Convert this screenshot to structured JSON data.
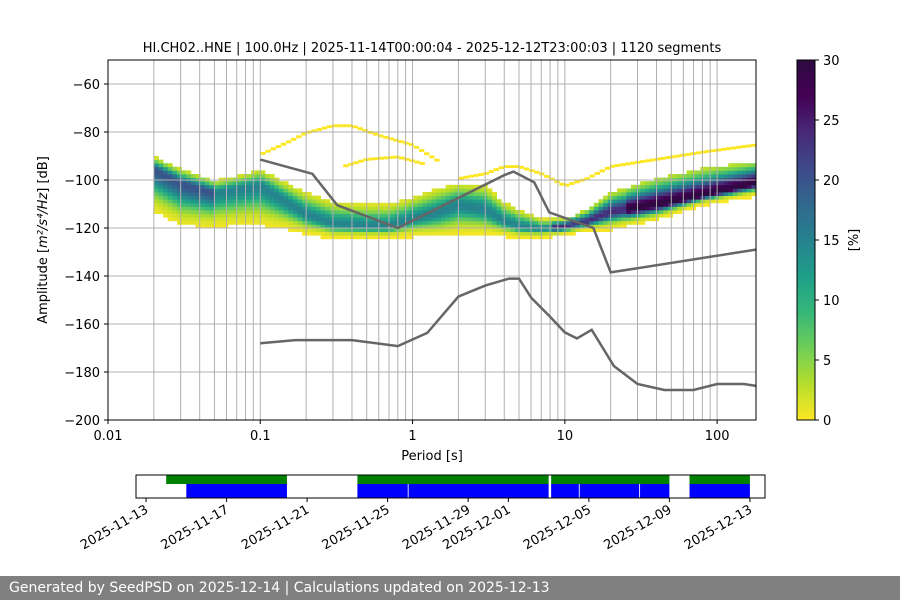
{
  "chart_data": {
    "type": "heatmap",
    "title": "HI.CH02..HNE | 100.0Hz | 2025-11-14T00:00:04 - 2025-12-12T23:00:03 | 1120 segments",
    "xlabel": "Period [s]",
    "ylabel_prefix": "Amplitude [",
    "ylabel_units": "m²/s⁴/Hz",
    "ylabel_suffix": "] [dB]",
    "xscale": "log",
    "xlim": [
      0.01,
      180
    ],
    "ylim": [
      -200,
      -50
    ],
    "x_ticks": [
      {
        "v": 0.01,
        "label": "0.01"
      },
      {
        "v": 0.1,
        "label": "0.1"
      },
      {
        "v": 1,
        "label": "1"
      },
      {
        "v": 10,
        "label": "10"
      },
      {
        "v": 100,
        "label": "100"
      }
    ],
    "y_ticks": [
      {
        "v": -60,
        "label": "−60"
      },
      {
        "v": -80,
        "label": "−80"
      },
      {
        "v": -100,
        "label": "−100"
      },
      {
        "v": -120,
        "label": "−120"
      },
      {
        "v": -140,
        "label": "−140"
      },
      {
        "v": -160,
        "label": "−160"
      },
      {
        "v": -180,
        "label": "−180"
      },
      {
        "v": -200,
        "label": "−200"
      }
    ],
    "grid": true,
    "period_range": [
      0.02,
      180
    ],
    "mode_curve": {
      "x": [
        0.02,
        0.03,
        0.05,
        0.08,
        0.1,
        0.15,
        0.2,
        0.3,
        0.5,
        0.7,
        1,
        1.5,
        2,
        3,
        4,
        5,
        7,
        10,
        14,
        20,
        40,
        80,
        180
      ],
      "y": [
        -96,
        -102,
        -106,
        -104,
        -103,
        -110,
        -115,
        -119,
        -120,
        -120,
        -117,
        -114,
        -111,
        -113,
        -118,
        -120,
        -121,
        -120,
        -118,
        -114,
        -111,
        -107,
        -102
      ]
    },
    "band_upper": {
      "x": [
        0.02,
        0.03,
        0.05,
        0.08,
        0.1,
        0.15,
        0.2,
        0.3,
        0.5,
        0.7,
        1,
        1.5,
        2,
        3,
        4,
        5,
        7,
        10,
        14,
        20,
        40,
        80,
        180
      ],
      "y": [
        -91,
        -96,
        -101,
        -98,
        -96,
        -102,
        -106,
        -110,
        -111,
        -111,
        -108,
        -104,
        -102,
        -103,
        -110,
        -113,
        -117,
        -117,
        -113,
        -106,
        -100,
        -96,
        -93
      ]
    },
    "band_lower": {
      "x": [
        0.02,
        0.03,
        0.05,
        0.08,
        0.1,
        0.15,
        0.2,
        0.3,
        0.5,
        0.7,
        1,
        1.5,
        2,
        3,
        4,
        5,
        7,
        10,
        14,
        20,
        40,
        80,
        180
      ],
      "y": [
        -112,
        -118,
        -119,
        -118,
        -118,
        -120,
        -122,
        -124,
        -124,
        -124,
        -123,
        -123,
        -122,
        -122,
        -123,
        -124,
        -124,
        -122,
        -121,
        -120,
        -116,
        -110,
        -106
      ]
    },
    "scatter_arcs": [
      {
        "x": [
          0.1,
          0.15,
          0.2,
          0.3,
          0.4,
          0.6,
          1,
          1.5
        ],
        "y": [
          -90,
          -85,
          -81,
          -78,
          -78,
          -82,
          -86,
          -93
        ]
      },
      {
        "x": [
          0.35,
          0.5,
          0.8,
          1.2
        ],
        "y": [
          -95,
          -92,
          -91,
          -94
        ]
      },
      {
        "x": [
          2,
          3,
          4,
          5,
          7,
          10,
          14,
          20,
          40,
          80,
          180
        ],
        "y": [
          -100,
          -98,
          -95,
          -95,
          -98,
          -103,
          -100,
          -95,
          -92,
          -89,
          -86
        ]
      }
    ],
    "nlnm": {
      "x": [
        0.1,
        0.17,
        0.3,
        0.4,
        0.8,
        1.25,
        2,
        3,
        4.3,
        5,
        6,
        8,
        10,
        12,
        15,
        21,
        30,
        45,
        70,
        100,
        150,
        180
      ],
      "y": [
        -168,
        -166.7,
        -166.7,
        -166.7,
        -169.2,
        -163.7,
        -148.6,
        -144,
        -141.1,
        -141.1,
        -149,
        -157,
        -163.5,
        -166,
        -162.4,
        -177.5,
        -185,
        -187.5,
        -187.5,
        -185,
        -185,
        -185.8
      ]
    },
    "nhnm": {
      "x": [
        0.1,
        0.22,
        0.32,
        0.8,
        4.0,
        4.6,
        6.3,
        7.9,
        15.4,
        20,
        180
      ],
      "y": [
        -91.5,
        -97.4,
        -110.5,
        -120,
        -98,
        -96.5,
        -101,
        -113.5,
        -120,
        -138.5,
        -129
      ]
    },
    "colorbar": {
      "label": "[%]",
      "min": 0,
      "max": 30,
      "ticks": [
        {
          "v": 0,
          "label": "0"
        },
        {
          "v": 5,
          "label": "5"
        },
        {
          "v": 10,
          "label": "10"
        },
        {
          "v": 15,
          "label": "15"
        },
        {
          "v": 20,
          "label": "20"
        },
        {
          "v": 25,
          "label": "25"
        },
        {
          "v": 30,
          "label": "30"
        }
      ]
    },
    "timeline": {
      "start": "2025-11-12T12:00:00",
      "end": "2025-12-13T18:00:00",
      "tick_labels": [
        "2025-11-13",
        "2025-11-17",
        "2025-11-21",
        "2025-11-25",
        "2025-11-29",
        "2025-12-01",
        "2025-12-05",
        "2025-12-09",
        "2025-12-13"
      ],
      "tick_dates": [
        "2025-11-13",
        "2025-11-17",
        "2025-11-21",
        "2025-11-25",
        "2025-11-29",
        "2025-12-01",
        "2025-12-05",
        "2025-12-09",
        "2025-12-13"
      ],
      "data_segments": [
        [
          "2025-11-14",
          "2025-11-20"
        ],
        [
          "2025-11-23T12:00:00",
          "2025-12-03"
        ],
        [
          "2025-12-03T03:00:00",
          "2025-12-09"
        ],
        [
          "2025-12-10",
          "2025-12-13"
        ]
      ],
      "psd_segments": [
        [
          "2025-11-15",
          "2025-11-20"
        ],
        [
          "2025-11-23T12:00:00",
          "2025-11-26"
        ],
        [
          "2025-11-26T01:00:00",
          "2025-12-03"
        ],
        [
          "2025-12-03T03:00:00",
          "2025-12-04T12:00:00"
        ],
        [
          "2025-12-04T13:00:00",
          "2025-12-07T12:00:00"
        ],
        [
          "2025-12-07T13:00:00",
          "2025-12-09"
        ],
        [
          "2025-12-10",
          "2025-12-13"
        ]
      ],
      "colors": {
        "data": "#008000",
        "psd": "#0000ff"
      }
    }
  },
  "colors": {
    "curve": "#666666",
    "grid": "#b0b0b0",
    "footer_bg": "#808080"
  },
  "footer": {
    "text": "Generated by SeedPSD on 2025-12-14 | Calculations updated on 2025-12-13"
  }
}
